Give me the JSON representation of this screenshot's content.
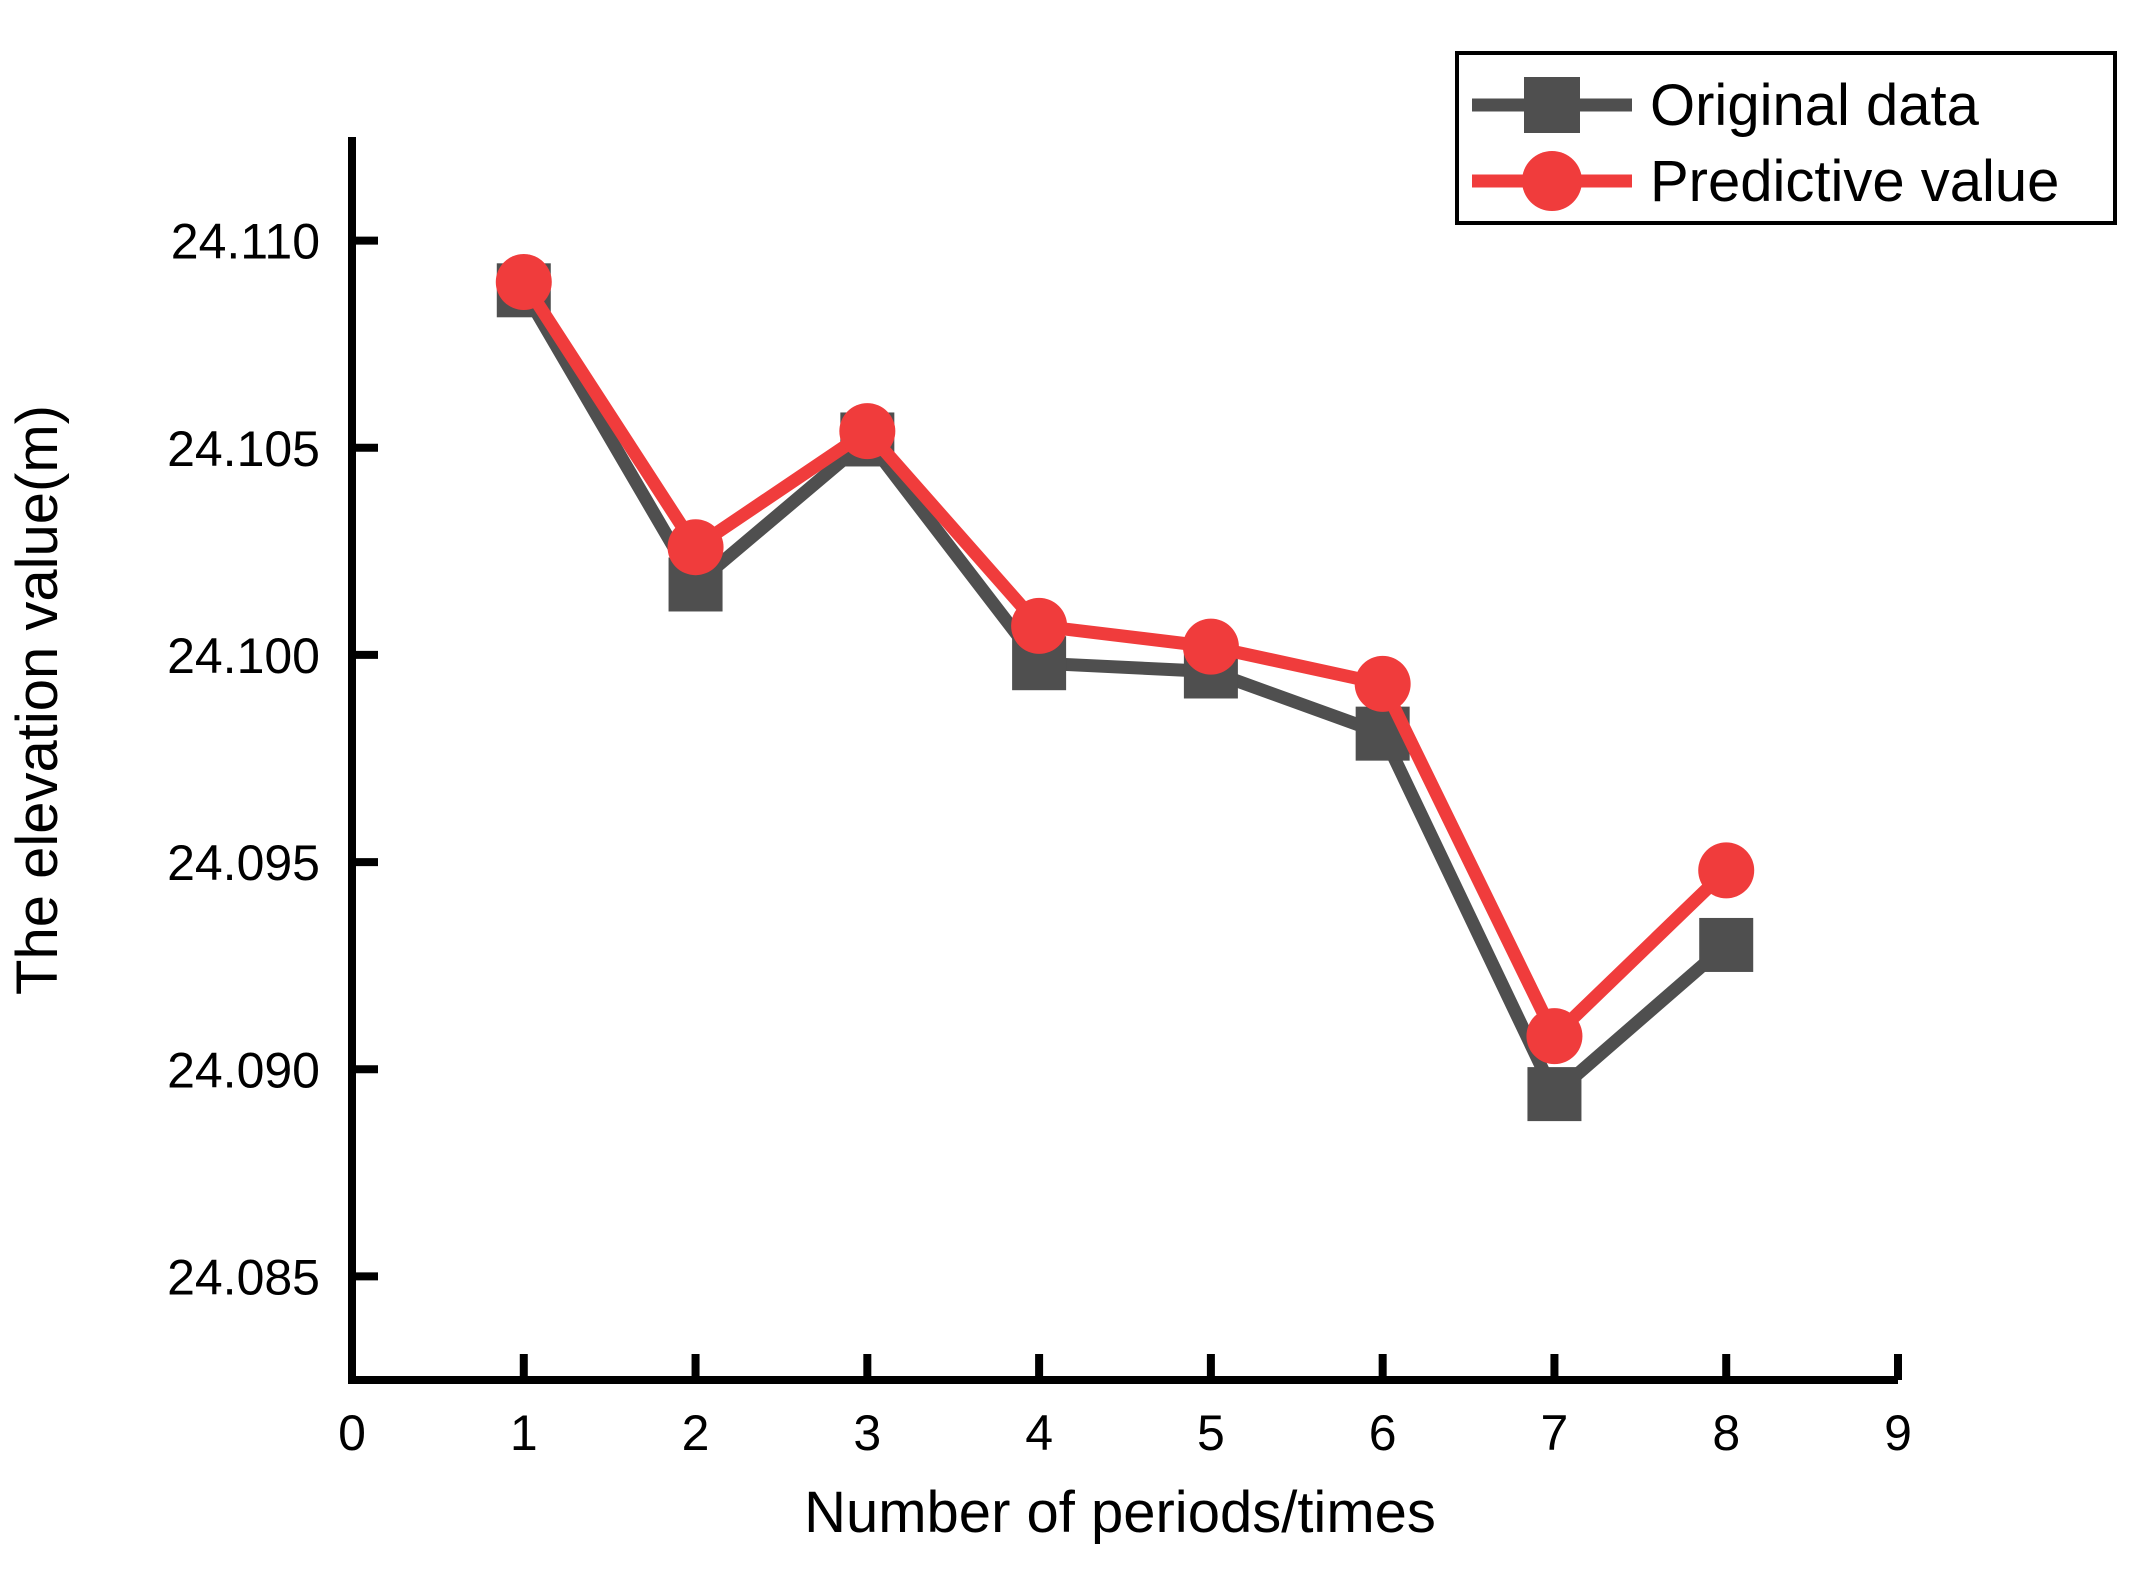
{
  "chart_data": {
    "type": "line",
    "title": "",
    "xlabel": "Number of periods/times",
    "ylabel": "The elevation value(m)",
    "x": [
      1,
      2,
      3,
      4,
      5,
      6,
      7,
      8
    ],
    "series": [
      {
        "name": "Original data",
        "color": "#4F4F4F",
        "marker": "square",
        "values": [
          24.1088,
          24.1017,
          24.1052,
          24.0998,
          24.0996,
          24.0981,
          24.0894,
          24.093
        ]
      },
      {
        "name": "Predictive value",
        "color": "#F03C3C",
        "marker": "circle",
        "values": [
          24.109,
          24.1026,
          24.1054,
          24.1007,
          24.1002,
          24.0993,
          24.0908,
          24.0948
        ]
      }
    ],
    "xlim": [
      0,
      9
    ],
    "ylim": [
      24.0825,
      24.1125
    ],
    "x_ticks": [
      0,
      1,
      2,
      3,
      4,
      5,
      6,
      7,
      8,
      9
    ],
    "x_tick_labels": [
      "0",
      "1",
      "2",
      "3",
      "4",
      "5",
      "6",
      "7",
      "8",
      "9"
    ],
    "y_ticks": [
      24.085,
      24.09,
      24.095,
      24.1,
      24.105,
      24.11
    ],
    "y_tick_labels": [
      "24.085",
      "24.090",
      "24.095",
      "24.100",
      "24.105",
      "24.110"
    ],
    "grid": false,
    "legend_position": "top-right",
    "axis_color": "#000000",
    "background_color": "#ffffff"
  },
  "legend": {
    "items": [
      {
        "label": "Original data"
      },
      {
        "label": "Predictive value"
      }
    ]
  }
}
